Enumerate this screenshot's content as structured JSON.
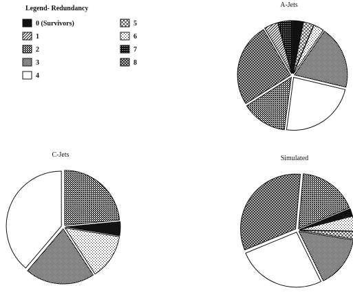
{
  "legend": {
    "title": "Legend- Redundancy",
    "items": [
      {
        "label": "0 (Survivors)",
        "pattern": "solid"
      },
      {
        "label": "1",
        "pattern": "diag"
      },
      {
        "label": "2",
        "pattern": "dense-grid"
      },
      {
        "label": "3",
        "pattern": "checker"
      },
      {
        "label": "4",
        "pattern": "white"
      },
      {
        "label": "5",
        "pattern": "cross-light"
      },
      {
        "label": "6",
        "pattern": "dots-light"
      },
      {
        "label": "7",
        "pattern": "dark-check"
      },
      {
        "label": "8",
        "pattern": "dark-cross"
      }
    ]
  },
  "chart_data": [
    {
      "type": "pie",
      "title": "A-Jets",
      "categories": [
        "0 (Survivors)",
        "1",
        "2",
        "3",
        "4",
        "5",
        "6",
        "7",
        "8"
      ],
      "values": [
        3,
        4,
        13,
        18,
        22,
        3,
        3,
        4,
        24
      ],
      "start_angle_deg": 90,
      "direction": "clockwise",
      "order": [
        0,
        5,
        6,
        3,
        4,
        2,
        8,
        1,
        7
      ]
    },
    {
      "type": "pie",
      "title": "C-Jets",
      "categories": [
        "0 (Survivors)",
        "1",
        "2",
        "3",
        "4",
        "5",
        "6",
        "7",
        "8"
      ],
      "values": [
        4,
        0,
        23,
        20,
        38,
        0,
        13,
        0,
        0
      ],
      "start_angle_deg": 90,
      "direction": "clockwise",
      "order": [
        2,
        0,
        6,
        3,
        4
      ]
    },
    {
      "type": "pie",
      "title": "Simulated",
      "categories": [
        "0 (Survivors)",
        "1",
        "2",
        "3",
        "4",
        "5",
        "6",
        "7",
        "8"
      ],
      "values": [
        2,
        0,
        16,
        14,
        24,
        2,
        4,
        0,
        30
      ],
      "start_angle_deg": 85,
      "direction": "clockwise",
      "order": [
        2,
        0,
        6,
        5,
        3,
        4,
        8
      ]
    }
  ],
  "colors": {
    "ink": "#111111",
    "paper": "#ffffff"
  }
}
